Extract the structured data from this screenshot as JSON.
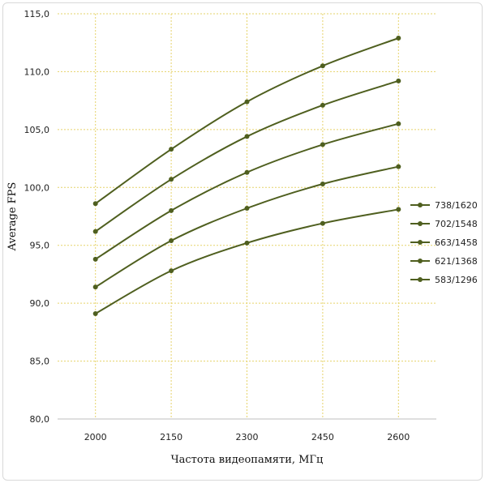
{
  "chart_data": {
    "type": "line",
    "title": "",
    "xlabel": "Частота видеопамяти, МГц",
    "ylabel": "Average FPS",
    "categories": [
      "2000",
      "2150",
      "2300",
      "2450",
      "2600"
    ],
    "ylim": [
      80,
      115
    ],
    "ytick_step": 5,
    "ytick_labels": [
      "80,0",
      "85,0",
      "90,0",
      "95,0",
      "100,0",
      "105,0",
      "110,0",
      "115,0"
    ],
    "grid": "on",
    "legend_position": "right",
    "line_color": "#4f5f1f",
    "grid_color": "#e6d36a",
    "series": [
      {
        "name": "738/1620",
        "values": [
          98.6,
          103.3,
          107.4,
          110.5,
          112.9
        ]
      },
      {
        "name": "702/1548",
        "values": [
          96.2,
          100.7,
          104.4,
          107.1,
          109.2
        ]
      },
      {
        "name": "663/1458",
        "values": [
          93.8,
          98.0,
          101.3,
          103.7,
          105.5
        ]
      },
      {
        "name": "621/1368",
        "values": [
          91.4,
          95.4,
          98.2,
          100.3,
          101.8
        ]
      },
      {
        "name": "583/1296",
        "values": [
          89.1,
          92.8,
          95.2,
          96.9,
          98.1
        ]
      }
    ]
  }
}
